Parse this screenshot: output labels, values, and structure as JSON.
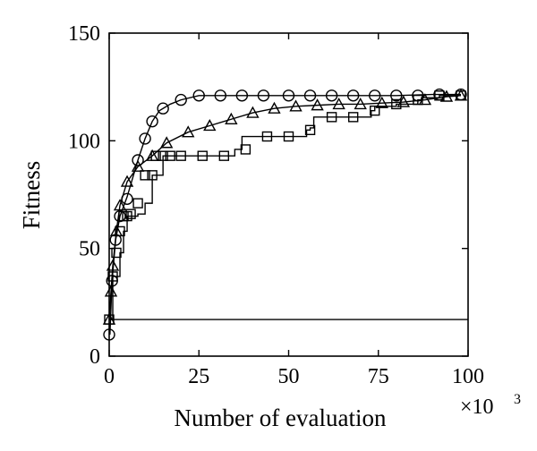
{
  "chart_data": {
    "type": "line",
    "title": "",
    "xlabel": "Number of evaluation",
    "ylabel": "Fitness",
    "x_multiplier": "×10",
    "x_multiplier_exp": "3",
    "xlim": [
      0,
      100
    ],
    "ylim": [
      0,
      150
    ],
    "xticks": [
      0,
      25,
      50,
      75,
      100
    ],
    "yticks": [
      0,
      50,
      100,
      150
    ],
    "xtick_labels": [
      "0",
      "25",
      "50",
      "75",
      "100"
    ],
    "ytick_labels": [
      "0",
      "50",
      "100",
      "150"
    ],
    "grid": false,
    "legend": false,
    "series": [
      {
        "marker": "circle",
        "step": false,
        "x": [
          0.2,
          0.8,
          1.8,
          3,
          5,
          8,
          10,
          12,
          14,
          17,
          20,
          25,
          35,
          50,
          65,
          80,
          90,
          98
        ],
        "y": [
          10,
          35,
          54,
          65,
          74,
          91,
          101,
          109,
          114,
          117,
          119,
          121,
          121,
          121,
          121,
          121,
          121.5,
          121.5
        ],
        "markers_x": [
          0,
          0.8,
          1.8,
          3,
          5,
          8,
          10,
          12,
          15,
          20,
          25,
          31,
          37,
          43,
          50,
          56,
          62,
          68,
          74,
          80,
          86,
          92,
          98
        ],
        "markers_y": [
          10,
          35,
          54,
          65,
          73,
          91,
          101,
          109,
          115,
          119,
          121,
          121,
          121,
          121,
          121,
          121,
          121,
          121,
          121,
          121,
          121,
          121.5,
          121.5
        ]
      },
      {
        "marker": "triangle",
        "step": false,
        "x": [
          0,
          0.5,
          1,
          2,
          3,
          5,
          8,
          12,
          16,
          22,
          28,
          34,
          40,
          46,
          52,
          58,
          64,
          70,
          76,
          82,
          88,
          94,
          98
        ],
        "y": [
          17,
          30,
          42,
          58,
          70,
          81,
          88,
          93,
          99,
          104,
          107,
          110,
          113,
          115,
          116,
          116.5,
          117,
          117,
          117.5,
          118,
          119,
          120.5,
          121
        ],
        "markers_x": [
          0,
          0.5,
          1,
          2,
          3,
          5,
          8,
          12,
          16,
          22,
          28,
          34,
          40,
          46,
          52,
          58,
          64,
          70,
          76,
          82,
          88,
          94,
          98
        ],
        "markers_y": [
          17,
          30,
          42,
          58,
          70,
          81,
          88,
          93,
          99,
          104,
          107,
          110,
          113,
          115,
          116,
          116.5,
          117,
          117,
          117.5,
          118,
          119,
          120.5,
          121
        ]
      },
      {
        "marker": "square",
        "step": true,
        "x": [
          0,
          1,
          2,
          3,
          4,
          5,
          6,
          8,
          10,
          12,
          13,
          15,
          17,
          20,
          29,
          35,
          36,
          37,
          41,
          45,
          55,
          56,
          57,
          60,
          73,
          74,
          80,
          86,
          87,
          92,
          98
        ],
        "y": [
          17,
          37,
          37,
          48,
          58,
          65,
          65,
          66,
          71,
          84,
          84,
          93,
          93,
          93,
          93,
          96,
          96,
          102,
          102,
          102,
          105,
          106,
          111,
          111,
          114,
          116,
          117,
          119,
          120,
          121,
          121
        ],
        "markers_x": [
          0,
          1,
          2,
          3,
          4,
          5,
          6,
          8,
          10,
          12,
          13,
          15,
          17,
          20,
          26,
          32,
          38,
          44,
          50,
          56,
          62,
          68,
          74,
          80,
          86,
          92,
          98
        ],
        "markers_y": [
          17,
          37,
          48,
          58,
          65,
          65,
          66,
          71,
          84,
          84,
          93,
          93,
          93,
          93,
          93,
          93,
          96,
          102,
          102,
          105,
          111,
          111,
          114,
          117,
          119,
          121,
          121
        ]
      },
      {
        "marker": "none",
        "step": false,
        "x": [
          0,
          100
        ],
        "y": [
          17,
          17
        ]
      }
    ]
  }
}
